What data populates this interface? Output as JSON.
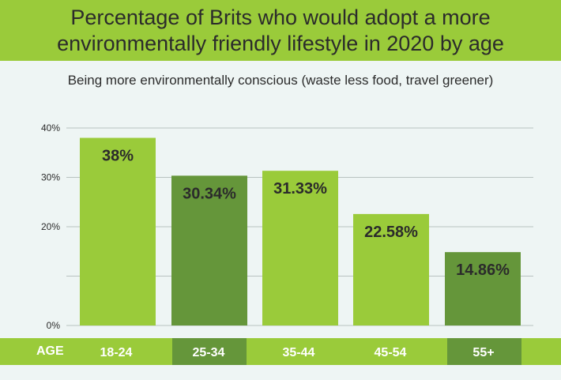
{
  "header": {
    "title": "Percentage of Brits who would adopt a more environmentally friendly lifestyle in 2020 by age",
    "subtitle": "Being more environmentally conscious (waste less food, travel greener)"
  },
  "axis": {
    "category_label": "AGE"
  },
  "colors": {
    "light_bar": "#9acb3a",
    "dark_bar": "#65963a",
    "background": "#eef5f4",
    "grid": "#b8c2c0",
    "value_text": "#2b2b2b",
    "category_text": "#ffffff"
  },
  "chart_data": {
    "type": "bar",
    "title": "Percentage of Brits who would adopt a more environmentally friendly lifestyle in 2020 by age",
    "subtitle": "Being more environmentally conscious (waste less food, travel greener)",
    "xlabel": "AGE",
    "ylabel": "",
    "ylim": [
      0,
      40
    ],
    "yticks": [
      0,
      10,
      20,
      30,
      40
    ],
    "ytick_labels": [
      "0%",
      "",
      "20%",
      "30%",
      "40%"
    ],
    "grid": true,
    "categories": [
      "18-24",
      "25-34",
      "35-44",
      "45-54",
      "55+"
    ],
    "values": [
      38,
      30.34,
      31.33,
      22.58,
      14.86
    ],
    "value_labels": [
      "38%",
      "30.34%",
      "31.33%",
      "22.58%",
      "14.86%"
    ],
    "bar_colors": [
      "#9acb3a",
      "#65963a",
      "#9acb3a",
      "#9acb3a",
      "#65963a"
    ]
  }
}
